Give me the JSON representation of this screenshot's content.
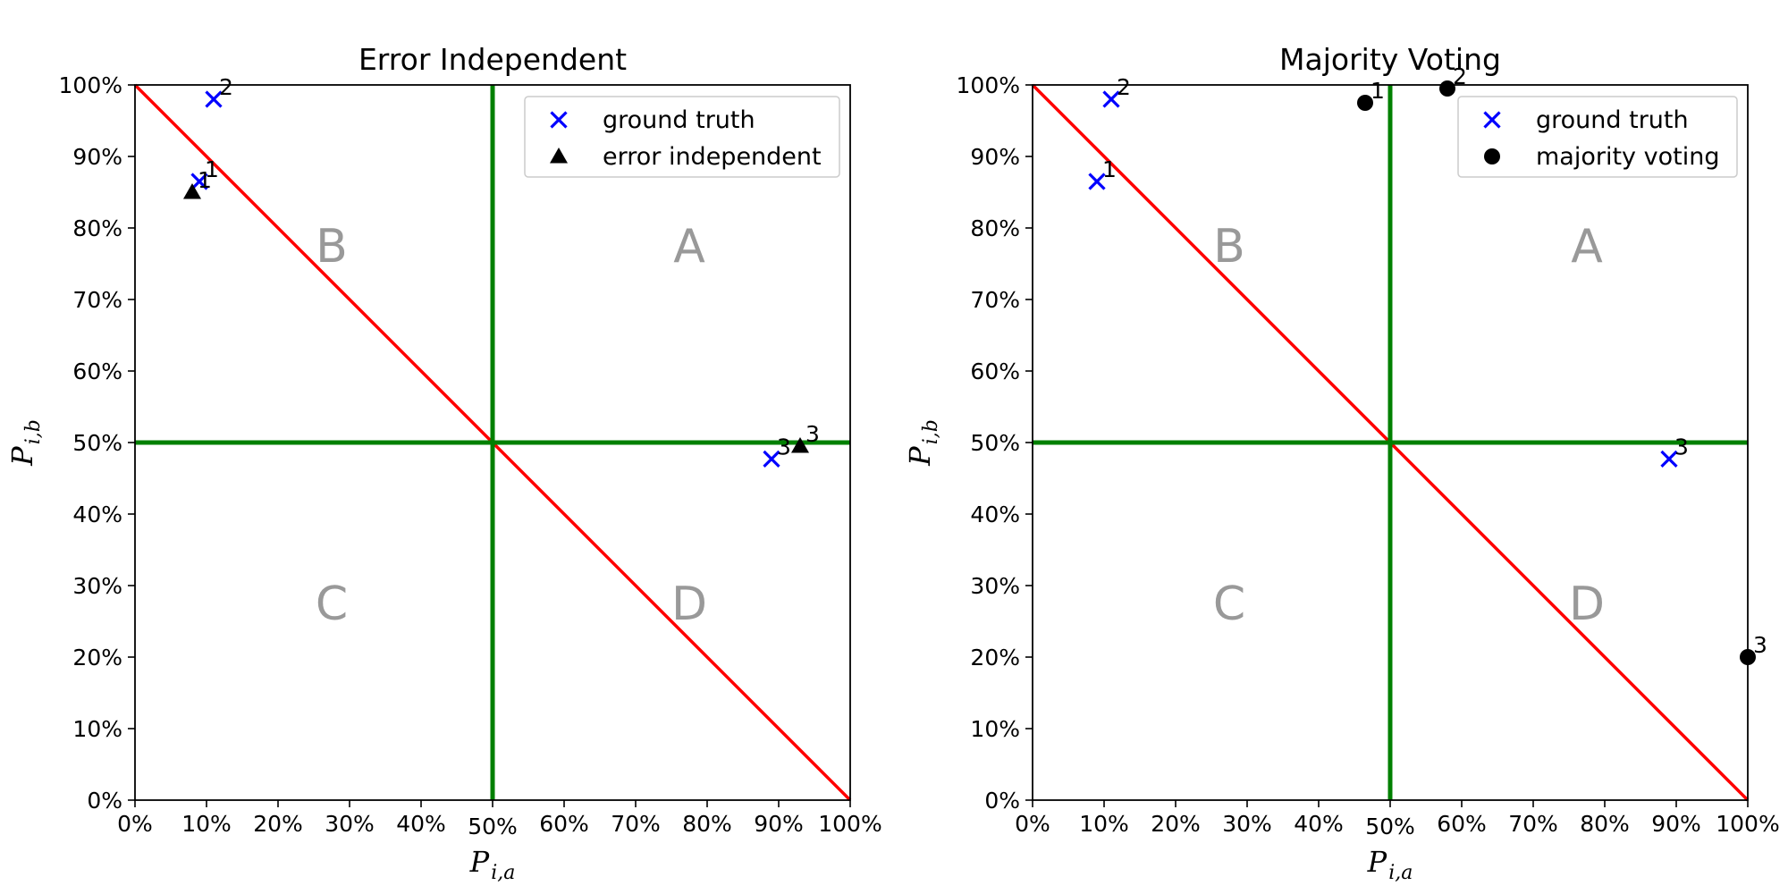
{
  "colors": {
    "ground_truth": "#0000ff",
    "estimate": "#000000",
    "diagonal": "#ff0000",
    "midlines": "#008000",
    "quadrant_text": "#999999"
  },
  "chart_data": [
    {
      "type": "scatter",
      "title": "Error Independent",
      "xlabel": {
        "base": "P",
        "sub": "i,a"
      },
      "ylabel": {
        "base": "P",
        "sub": "i,b"
      },
      "xlim": [
        0,
        100
      ],
      "ylim": [
        0,
        100
      ],
      "x_ticks": [
        "0%",
        "10%",
        "20%",
        "30%",
        "40%",
        "50%",
        "60%",
        "70%",
        "80%",
        "90%",
        "100%"
      ],
      "y_ticks": [
        "0%",
        "10%",
        "20%",
        "30%",
        "40%",
        "50%",
        "60%",
        "70%",
        "80%",
        "90%",
        "100%"
      ],
      "grid": false,
      "legend_position": "upper right",
      "reference_lines": [
        {
          "type": "diagonal",
          "from": [
            0,
            100
          ],
          "to": [
            100,
            0
          ],
          "color": "#ff0000"
        },
        {
          "type": "vertical",
          "x": 50,
          "color": "#008000"
        },
        {
          "type": "horizontal",
          "y": 50,
          "color": "#008000"
        }
      ],
      "quadrant_labels": [
        {
          "text": "A",
          "x": 77.5,
          "y": 77.5
        },
        {
          "text": "B",
          "x": 27.5,
          "y": 77.5
        },
        {
          "text": "C",
          "x": 27.5,
          "y": 27.5
        },
        {
          "text": "D",
          "x": 77.5,
          "y": 27.5
        }
      ],
      "series": [
        {
          "name": "ground truth",
          "marker": "x",
          "color": "#0000ff",
          "points": [
            {
              "label": "1",
              "x": 9,
              "y": 86.5
            },
            {
              "label": "2",
              "x": 11,
              "y": 98
            },
            {
              "label": "3",
              "x": 89,
              "y": 47.7
            }
          ]
        },
        {
          "name": "error independent",
          "marker": "triangle",
          "color": "#000000",
          "points": [
            {
              "label": "1",
              "x": 8,
              "y": 85
            },
            {
              "label": "3",
              "x": 93,
              "y": 49.5
            }
          ]
        }
      ]
    },
    {
      "type": "scatter",
      "title": "Majority Voting",
      "xlabel": {
        "base": "P",
        "sub": "i,a"
      },
      "ylabel": {
        "base": "P",
        "sub": "i,b"
      },
      "xlim": [
        0,
        100
      ],
      "ylim": [
        0,
        100
      ],
      "x_ticks": [
        "0%",
        "10%",
        "20%",
        "30%",
        "40%",
        "50%",
        "60%",
        "70%",
        "80%",
        "90%",
        "100%"
      ],
      "y_ticks": [
        "0%",
        "10%",
        "20%",
        "30%",
        "40%",
        "50%",
        "60%",
        "70%",
        "80%",
        "90%",
        "100%"
      ],
      "grid": false,
      "legend_position": "upper right",
      "reference_lines": [
        {
          "type": "diagonal",
          "from": [
            0,
            100
          ],
          "to": [
            100,
            0
          ],
          "color": "#ff0000"
        },
        {
          "type": "vertical",
          "x": 50,
          "color": "#008000"
        },
        {
          "type": "horizontal",
          "y": 50,
          "color": "#008000"
        }
      ],
      "quadrant_labels": [
        {
          "text": "A",
          "x": 77.5,
          "y": 77.5
        },
        {
          "text": "B",
          "x": 27.5,
          "y": 77.5
        },
        {
          "text": "C",
          "x": 27.5,
          "y": 27.5
        },
        {
          "text": "D",
          "x": 77.5,
          "y": 27.5
        }
      ],
      "series": [
        {
          "name": "ground truth",
          "marker": "x",
          "color": "#0000ff",
          "points": [
            {
              "label": "1",
              "x": 9,
              "y": 86.5
            },
            {
              "label": "2",
              "x": 11,
              "y": 98
            },
            {
              "label": "3",
              "x": 89,
              "y": 47.7
            }
          ]
        },
        {
          "name": "majority voting",
          "marker": "circle",
          "color": "#000000",
          "points": [
            {
              "label": "1",
              "x": 46.5,
              "y": 97.5
            },
            {
              "label": "2",
              "x": 58,
              "y": 99.5
            },
            {
              "label": "3",
              "x": 100,
              "y": 20
            }
          ]
        }
      ]
    }
  ]
}
